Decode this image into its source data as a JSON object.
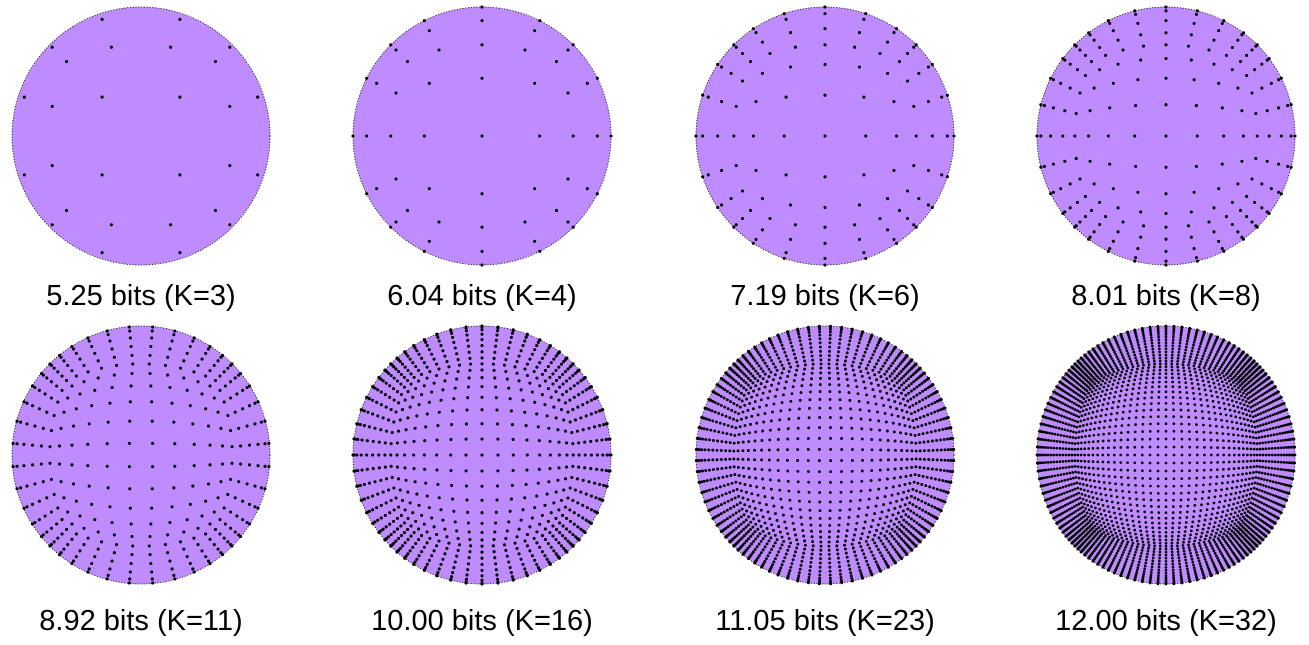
{
  "colors": {
    "sphere_fill": "#bf8cff",
    "point": "#000000",
    "outline": "#000000"
  },
  "spheres": [
    {
      "caption": "5.25 bits (K=3)",
      "k": 3
    },
    {
      "caption": "6.04 bits (K=4)",
      "k": 4
    },
    {
      "caption": "7.19 bits (K=6)",
      "k": 6
    },
    {
      "caption": "8.01 bits (K=8)",
      "k": 8
    },
    {
      "caption": "8.92 bits (K=11)",
      "k": 11
    },
    {
      "caption": "10.00 bits (K=16)",
      "k": 16
    },
    {
      "caption": "11.05 bits (K=23)",
      "k": 23
    },
    {
      "caption": "12.00 bits (K=32)",
      "k": 32
    }
  ]
}
